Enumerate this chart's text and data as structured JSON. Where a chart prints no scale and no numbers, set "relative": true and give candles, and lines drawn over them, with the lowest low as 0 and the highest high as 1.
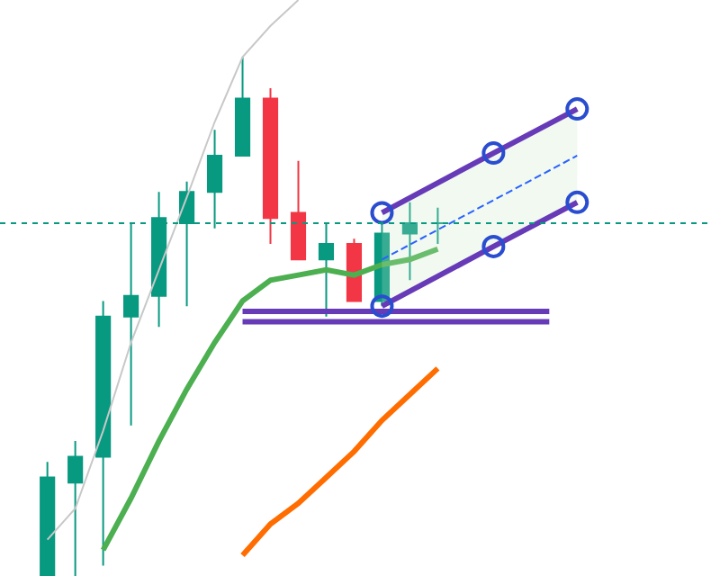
{
  "chart_data": {
    "type": "candlestick",
    "relative": true,
    "categories": [
      null,
      null,
      null,
      null,
      null,
      null,
      null,
      null,
      null,
      null,
      null,
      null,
      null,
      null,
      null,
      null,
      null,
      null,
      null,
      null
    ],
    "ohlc": [
      [
        0,
        0.22,
        0,
        0.19
      ],
      [
        0.18,
        0.26,
        0,
        0.23
      ],
      [
        0.23,
        0.53,
        0.02,
        0.5
      ],
      [
        0.5,
        0.68,
        0.29,
        0.54
      ],
      [
        0.54,
        0.74,
        0.48,
        0.69
      ],
      [
        0.68,
        0.76,
        0.52,
        0.74
      ],
      [
        0.74,
        0.86,
        0.67,
        0.81
      ],
      [
        0.81,
        1,
        0.81,
        0.92
      ],
      [
        0.92,
        0.94,
        0.64,
        0.69
      ],
      [
        0.7,
        0.8,
        0.61,
        0.61
      ],
      [
        0.61,
        0.68,
        0.5,
        0.64
      ],
      [
        0.64,
        0.65,
        0.53,
        0.53
      ],
      [
        0.53,
        0.68,
        0.52,
        0.66
      ],
      [
        0.66,
        0.72,
        0.57,
        0.68
      ],
      [
        0.68,
        0.71,
        0.64,
        0.68
      ],
      null,
      null,
      null,
      null,
      null
    ],
    "colors": [
      "#089981",
      "#089981",
      "#089981",
      "#089981",
      "#089981",
      "#089981",
      "#089981",
      "#089981",
      "#f23645",
      "#f23645",
      "#089981",
      "#f23645",
      "#089981",
      "#089981",
      "#089981",
      null,
      null,
      null,
      null,
      null
    ],
    "series": [
      {
        "type": "line",
        "color": "#c8c8c8",
        "values": [
          0.07,
          0.13,
          0.28,
          0.45,
          0.59,
          0.73,
          0.875,
          1.0,
          1.06,
          1.11,
          null,
          null,
          null,
          null,
          null,
          null,
          null,
          null,
          null,
          null
        ]
      },
      {
        "type": "line",
        "color": "#4caf50",
        "values": [
          null,
          null,
          0.05,
          0.15,
          0.26,
          0.36,
          0.45,
          0.53,
          0.57,
          0.58,
          0.59,
          0.58,
          0.6,
          0.61,
          0.63,
          null,
          null,
          null,
          null,
          null
        ]
      },
      {
        "type": "line",
        "color": "#ff6d00",
        "values": [
          null,
          null,
          null,
          null,
          null,
          null,
          null,
          0.04,
          0.1,
          0.14,
          0.19,
          0.24,
          0.3,
          0.35,
          0.4,
          null,
          null,
          null,
          null,
          null
        ]
      },
      {
        "type": "line",
        "color": "#673ab7",
        "values": [
          null,
          null,
          null,
          null,
          null,
          null,
          null,
          0.51,
          0.51,
          0.51,
          0.51,
          0.51,
          0.51,
          0.51,
          0.51,
          0.51,
          0.51,
          0.51,
          0.51,
          null
        ]
      },
      {
        "type": "line",
        "color": "#673ab7",
        "values": [
          null,
          null,
          null,
          null,
          null,
          null,
          null,
          0.49,
          0.49,
          0.49,
          0.49,
          0.49,
          0.49,
          0.49,
          0.49,
          0.49,
          0.49,
          0.49,
          0.49,
          null
        ]
      },
      {
        "type": "line",
        "color": "#2962ff",
        "line_style": "dashed",
        "values": [
          null,
          null,
          null,
          null,
          null,
          null,
          null,
          null,
          null,
          null,
          null,
          null,
          0.61,
          null,
          null,
          null,
          null,
          null,
          null,
          0.81
        ],
        "lower": [
          null,
          null,
          null,
          null,
          null,
          null,
          null,
          null,
          null,
          null,
          null,
          null,
          0.52,
          null,
          null,
          null,
          null,
          null,
          null,
          0.72
        ],
        "upper": [
          null,
          null,
          null,
          null,
          null,
          null,
          null,
          null,
          null,
          null,
          null,
          null,
          0.7,
          null,
          null,
          null,
          null,
          null,
          null,
          0.9
        ]
      },
      {
        "type": "line",
        "color": "#673ab7",
        "marker": "circle",
        "values": [
          null,
          null,
          null,
          null,
          null,
          null,
          null,
          null,
          null,
          null,
          null,
          null,
          0.7,
          null,
          null,
          null,
          0.815,
          null,
          null,
          0.9
        ]
      },
      {
        "type": "line",
        "color": "#673ab7",
        "marker": "circle",
        "values": [
          null,
          null,
          null,
          null,
          null,
          null,
          null,
          null,
          null,
          null,
          null,
          null,
          0.52,
          null,
          null,
          null,
          0.635,
          null,
          null,
          0.72
        ]
      }
    ],
    "ref_lines": [
      {
        "axis": "y",
        "value": 0.68,
        "color": "#089981",
        "line_style": "dotted"
      }
    ]
  }
}
